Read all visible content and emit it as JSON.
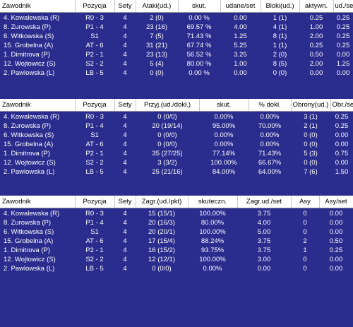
{
  "tables": [
    {
      "headers": [
        "Zawodnik",
        "Pozycja",
        "Sety",
        "Ataki(ud.)",
        "skut.",
        "udane/set",
        "Bloki(ud.)",
        "aktywn.",
        "ud./se"
      ],
      "rows": [
        [
          "4. Kowalewska (R)",
          "R0 - 3",
          "4",
          "2 (0)",
          "0.00 %",
          "0.00",
          "1 (1)",
          "0.25",
          "0.25"
        ],
        [
          "8. Zurowska (P)",
          "P1 - 4",
          "4",
          "23 (16)",
          "69.57 %",
          "4.00",
          "4 (1)",
          "1.00",
          "0.25"
        ],
        [
          "6. Witkowska (S)",
          "S1",
          "4",
          "7 (5)",
          "71.43 %",
          "1.25",
          "8 (1)",
          "2.00",
          "0.25"
        ],
        [
          "15. Grobelna (A)",
          "AT - 6",
          "4",
          "31 (21)",
          "67.74 %",
          "5.25",
          "1 (1)",
          "0.25",
          "0.25"
        ],
        [
          "1. Dimitrova (P)",
          "P2 - 1",
          "4",
          "23 (13)",
          "56.52 %",
          "3.25",
          "2 (0)",
          "0.50",
          "0.00"
        ],
        [
          "12. Wojtowicz (S)",
          "S2 - 2",
          "4",
          "5 (4)",
          "80.00 %",
          "1.00",
          "8 (5)",
          "2.00",
          "1.25"
        ],
        [
          "2. Pawlowska (L)",
          "LB - 5",
          "4",
          "0 (0)",
          "0.00 %",
          "0.00",
          "0 (0)",
          "0.00",
          "0.00"
        ]
      ]
    },
    {
      "headers": [
        "Zawodnik",
        "Pozycja",
        "Sety",
        "Przyj.(ud./dokł.)",
        "skut.",
        "% dokł.",
        "Obrony(ud.)",
        "Obr./se"
      ],
      "rows": [
        [
          "4. Kowalewska (R)",
          "R0 - 3",
          "4",
          "0 (0/0)",
          "0.00%",
          "0.00%",
          "3 (1)",
          "0.25"
        ],
        [
          "8. Zurowska (P)",
          "P1 - 4",
          "4",
          "20 (19/14)",
          "95.00%",
          "70.00%",
          "2 (1)",
          "0.25"
        ],
        [
          "6. Witkowska (S)",
          "S1",
          "4",
          "0 (0/0)",
          "0.00%",
          "0.00%",
          "0 (0)",
          "0.00"
        ],
        [
          "15. Grobelna (A)",
          "AT - 6",
          "4",
          "0 (0/0)",
          "0.00%",
          "0.00%",
          "0 (0)",
          "0.00"
        ],
        [
          "1. Dimitrova (P)",
          "P2 - 1",
          "4",
          "35 (27/25)",
          "77.14%",
          "71.43%",
          "5 (3)",
          "0.75"
        ],
        [
          "12. Wojtowicz (S)",
          "S2 - 2",
          "4",
          "3 (3/2)",
          "100.00%",
          "66.67%",
          "0 (0)",
          "0.00"
        ],
        [
          "2. Pawlowska (L)",
          "LB - 5",
          "4",
          "25 (21/16)",
          "84.00%",
          "64.00%",
          "7 (6)",
          "1.50"
        ]
      ]
    },
    {
      "headers": [
        "Zawodnik",
        "Pozycja",
        "Sety",
        "Zagr.(ud./pkt)",
        "skuteczn.",
        "Zagr.ud./set",
        "Asy",
        "Asy/set"
      ],
      "rows": [
        [
          "4. Kowalewska (R)",
          "R0 - 3",
          "4",
          "15 (15/1)",
          "100.00%",
          "3.75",
          "0",
          "0.00"
        ],
        [
          "8. Zurowska (P)",
          "P1 - 4",
          "4",
          "20 (16/3)",
          "80.00%",
          "4.00",
          "0",
          "0.00"
        ],
        [
          "6. Witkowska (S)",
          "S1",
          "4",
          "20 (20/1)",
          "100.00%",
          "5.00",
          "0",
          "0.00"
        ],
        [
          "15. Grobelna (A)",
          "AT - 6",
          "4",
          "17 (15/4)",
          "88.24%",
          "3.75",
          "2",
          "0.50"
        ],
        [
          "1. Dimitrova (P)",
          "P2 - 1",
          "4",
          "16 (15/2)",
          "93.75%",
          "3.75",
          "1",
          "0.25"
        ],
        [
          "12. Wojtowicz (S)",
          "S2 - 2",
          "4",
          "12 (12/1)",
          "100.00%",
          "3.00",
          "0",
          "0.00"
        ],
        [
          "2. Pawlowska (L)",
          "LB - 5",
          "4",
          "0 (0/0)",
          "0.00%",
          "0.00",
          "0",
          "0.00"
        ]
      ]
    }
  ]
}
